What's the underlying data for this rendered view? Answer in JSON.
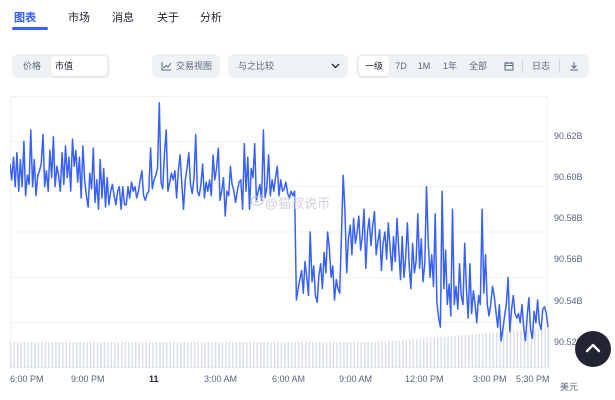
{
  "tabs": [
    "图表",
    "市场",
    "消息",
    "关于",
    "分析"
  ],
  "toolbar": {
    "metric_options": [
      "价格",
      "市值"
    ],
    "metric_selected": "市值",
    "trading_view": "交易视图",
    "compare": "与之比较",
    "ranges": [
      "一级",
      "7D",
      "1M",
      "1年",
      "全部"
    ],
    "range_selected": "一级",
    "log_label": "日志"
  },
  "watermark": "@猫叔说币",
  "chart_data": {
    "type": "line",
    "title": "",
    "xlabel": "",
    "ylabel": "",
    "unit": "美元",
    "y_ticks": [
      "90.62B",
      "90.60B",
      "90.58B",
      "90.56B",
      "90.54B",
      "90.52B"
    ],
    "x_ticks": [
      "6:00 PM",
      "9:00 PM",
      "11",
      "3:00 AM",
      "6:00 AM",
      "9:00 AM",
      "12:00 PM",
      "3:00 PM",
      "5:30 PM"
    ],
    "ylim": [
      90.52,
      90.64
    ],
    "color": "#3861fb",
    "values": [
      90.61,
      90.603,
      90.613,
      90.6,
      90.615,
      90.598,
      90.612,
      90.6,
      90.62,
      90.596,
      90.605,
      90.601,
      90.625,
      90.6,
      90.612,
      90.596,
      90.605,
      90.607,
      90.61,
      90.623,
      90.6,
      90.607,
      90.598,
      90.616,
      90.604,
      90.622,
      90.6,
      90.609,
      90.605,
      90.598,
      90.615,
      90.601,
      90.618,
      90.604,
      90.613,
      90.598,
      90.621,
      90.609,
      90.616,
      90.602,
      90.613,
      90.595,
      90.618,
      90.603,
      90.596,
      90.591,
      90.606,
      90.599,
      90.617,
      90.593,
      90.603,
      90.59,
      90.612,
      90.595,
      90.608,
      90.591,
      90.604,
      90.592,
      90.598,
      90.601,
      90.596,
      90.592,
      90.598,
      90.6,
      90.59,
      90.6,
      90.592,
      90.592,
      90.6,
      90.595,
      90.602,
      90.598,
      90.6,
      90.595,
      90.598,
      90.603,
      90.607,
      90.596,
      90.594,
      90.597,
      90.598,
      90.617,
      90.599,
      90.603,
      90.605,
      90.608,
      90.637,
      90.602,
      90.599,
      90.615,
      90.625,
      90.598,
      90.602,
      90.606,
      90.603,
      90.607,
      90.595,
      90.607,
      90.614,
      90.601,
      90.59,
      90.603,
      90.608,
      90.615,
      90.601,
      90.597,
      90.604,
      90.623,
      90.598,
      90.596,
      90.601,
      90.61,
      90.595,
      90.602,
      90.598,
      90.603,
      90.596,
      90.614,
      90.603,
      90.608,
      90.617,
      90.594,
      90.598,
      90.604,
      90.587,
      90.598,
      90.596,
      90.609,
      90.601,
      90.598,
      90.593,
      90.598,
      90.602,
      90.603,
      90.59,
      90.619,
      90.598,
      90.613,
      90.59,
      90.608,
      90.604,
      90.619,
      90.594,
      90.598,
      90.601,
      90.594,
      90.625,
      90.595,
      90.6,
      90.614,
      90.596,
      90.603,
      90.598,
      90.604,
      90.609,
      90.596,
      90.603,
      90.598,
      90.599,
      90.602,
      90.597,
      90.595,
      90.598,
      90.596,
      90.598,
      90.55,
      90.555,
      90.559,
      90.563,
      90.553,
      90.567,
      90.56,
      90.552,
      90.58,
      90.558,
      90.565,
      90.552,
      90.549,
      90.561,
      90.566,
      90.555,
      90.571,
      90.562,
      90.58,
      90.573,
      90.56,
      90.565,
      90.55,
      90.559,
      90.555,
      90.553,
      90.579,
      90.605,
      90.59,
      90.562,
      90.577,
      90.583,
      90.57,
      90.586,
      90.575,
      90.58,
      90.587,
      90.572,
      90.578,
      90.59,
      90.564,
      90.58,
      90.586,
      90.574,
      90.583,
      90.589,
      90.57,
      90.576,
      90.581,
      90.563,
      90.575,
      90.58,
      90.568,
      90.584,
      90.573,
      90.563,
      90.578,
      90.567,
      90.586,
      90.573,
      90.559,
      90.578,
      90.56,
      90.569,
      90.584,
      90.565,
      90.555,
      90.575,
      90.562,
      90.567,
      90.588,
      90.564,
      90.577,
      90.558,
      90.566,
      90.6,
      90.575,
      90.56,
      90.57,
      90.556,
      90.588,
      90.549,
      90.542,
      90.538,
      90.598,
      90.555,
      90.572,
      90.548,
      90.557,
      90.543,
      90.59,
      90.548,
      90.556,
      90.546,
      90.566,
      90.552,
      90.548,
      90.575,
      90.555,
      90.542,
      90.566,
      90.544,
      90.554,
      90.548,
      90.54,
      90.552,
      90.548,
      90.59,
      90.553,
      90.57,
      90.548,
      90.543,
      90.548,
      90.556,
      90.552,
      90.545,
      90.538,
      90.548,
      90.532,
      90.537,
      90.543,
      90.548,
      90.56,
      90.536,
      90.546,
      90.552,
      90.544,
      90.542,
      90.544,
      90.54,
      90.548,
      90.538,
      90.532,
      90.543,
      90.551,
      90.537,
      90.533,
      90.545,
      90.54,
      90.55,
      90.54,
      90.537,
      90.546,
      90.547,
      90.544,
      90.538
    ]
  }
}
